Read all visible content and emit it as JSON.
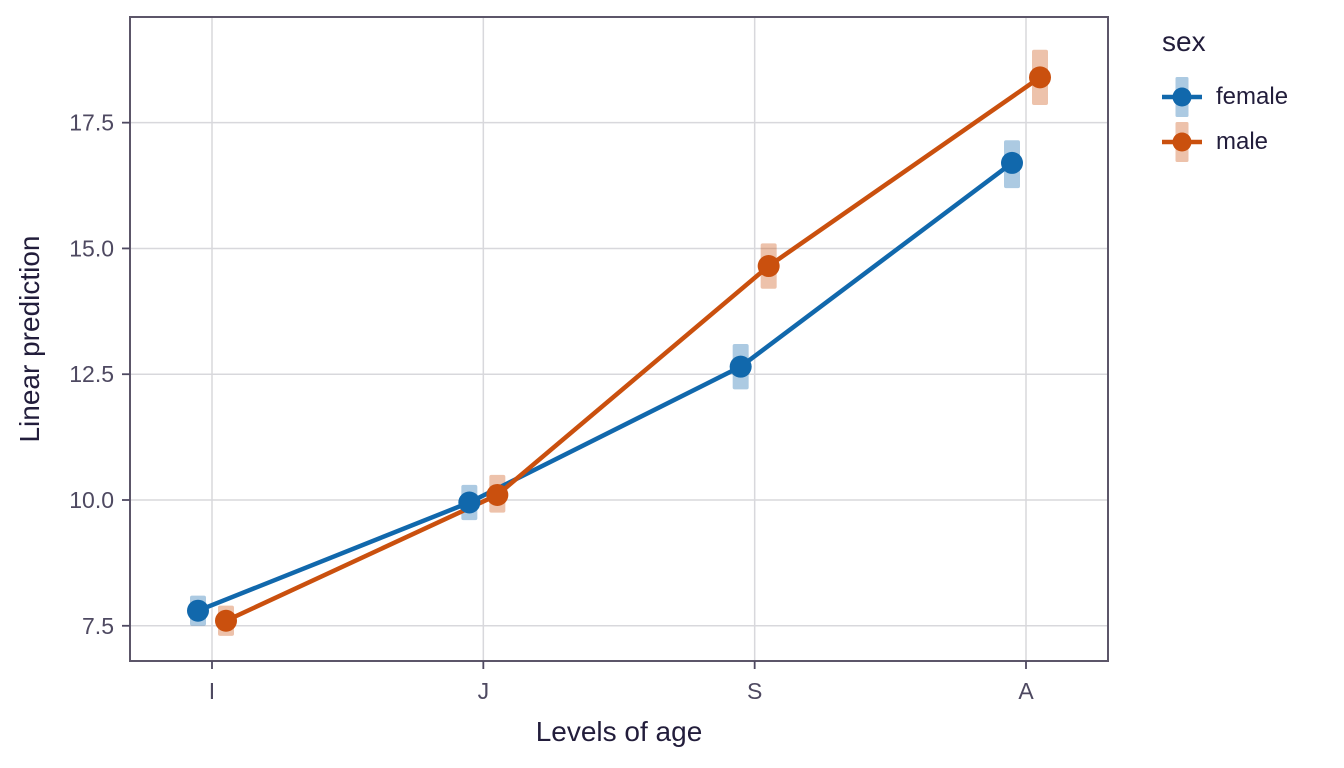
{
  "chart_data": {
    "type": "line",
    "title": "",
    "xlabel": "Levels of age",
    "ylabel": "Linear prediction",
    "legend_title": "sex",
    "legend_position": "right",
    "categories": [
      "I",
      "J",
      "S",
      "A"
    ],
    "ytick_labels": [
      "7.5",
      "10.0",
      "12.5",
      "15.0",
      "17.5"
    ],
    "ytick_values": [
      7.5,
      10.0,
      12.5,
      15.0,
      17.5
    ],
    "ylim": [
      6.8,
      19.6
    ],
    "grid": true,
    "error_bars": true,
    "series": [
      {
        "name": "female",
        "color": "#1168AC",
        "band_opacity": 0.35,
        "values": [
          7.8,
          9.95,
          12.65,
          16.7
        ],
        "ci_low": [
          7.5,
          9.6,
          12.2,
          16.2
        ],
        "ci_high": [
          8.1,
          10.3,
          13.1,
          17.15
        ]
      },
      {
        "name": "male",
        "color": "#CA500E",
        "band_opacity": 0.35,
        "values": [
          7.6,
          10.1,
          14.65,
          18.4
        ],
        "ci_low": [
          7.3,
          9.75,
          14.2,
          17.85
        ],
        "ci_high": [
          7.9,
          10.5,
          15.1,
          18.95
        ]
      }
    ]
  },
  "theme": {
    "background": "#ffffff",
    "grid_color": "#D8D8DC",
    "border_color": "#5C5669",
    "tick_color": "#4E4961",
    "tick_label_color": "#4E4961",
    "title_color": "#221D3B"
  }
}
